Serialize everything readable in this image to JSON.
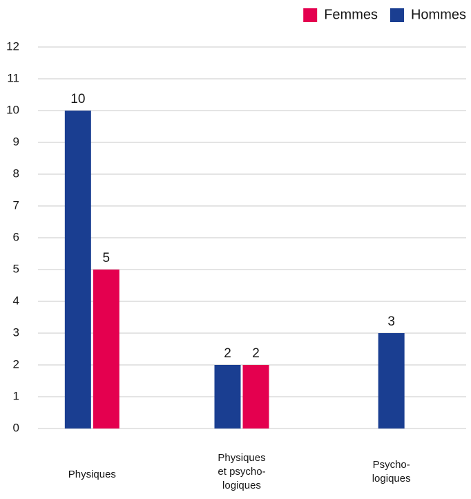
{
  "chart_data": {
    "type": "bar",
    "categories": [
      "Physiques",
      "Physiques\net psycho-\nlogiques",
      "Psycho-\nlogiques"
    ],
    "series": [
      {
        "name": "Femmes",
        "color": "#e4004f",
        "values": [
          5,
          2,
          null
        ]
      },
      {
        "name": "Hommes",
        "color": "#1a3e91",
        "values": [
          10,
          2,
          3
        ]
      }
    ],
    "ylim": [
      0,
      12
    ],
    "yticks": [
      0,
      1,
      2,
      3,
      4,
      5,
      6,
      7,
      8,
      9,
      10,
      11,
      12
    ],
    "grid": true,
    "legend": "top-right"
  }
}
